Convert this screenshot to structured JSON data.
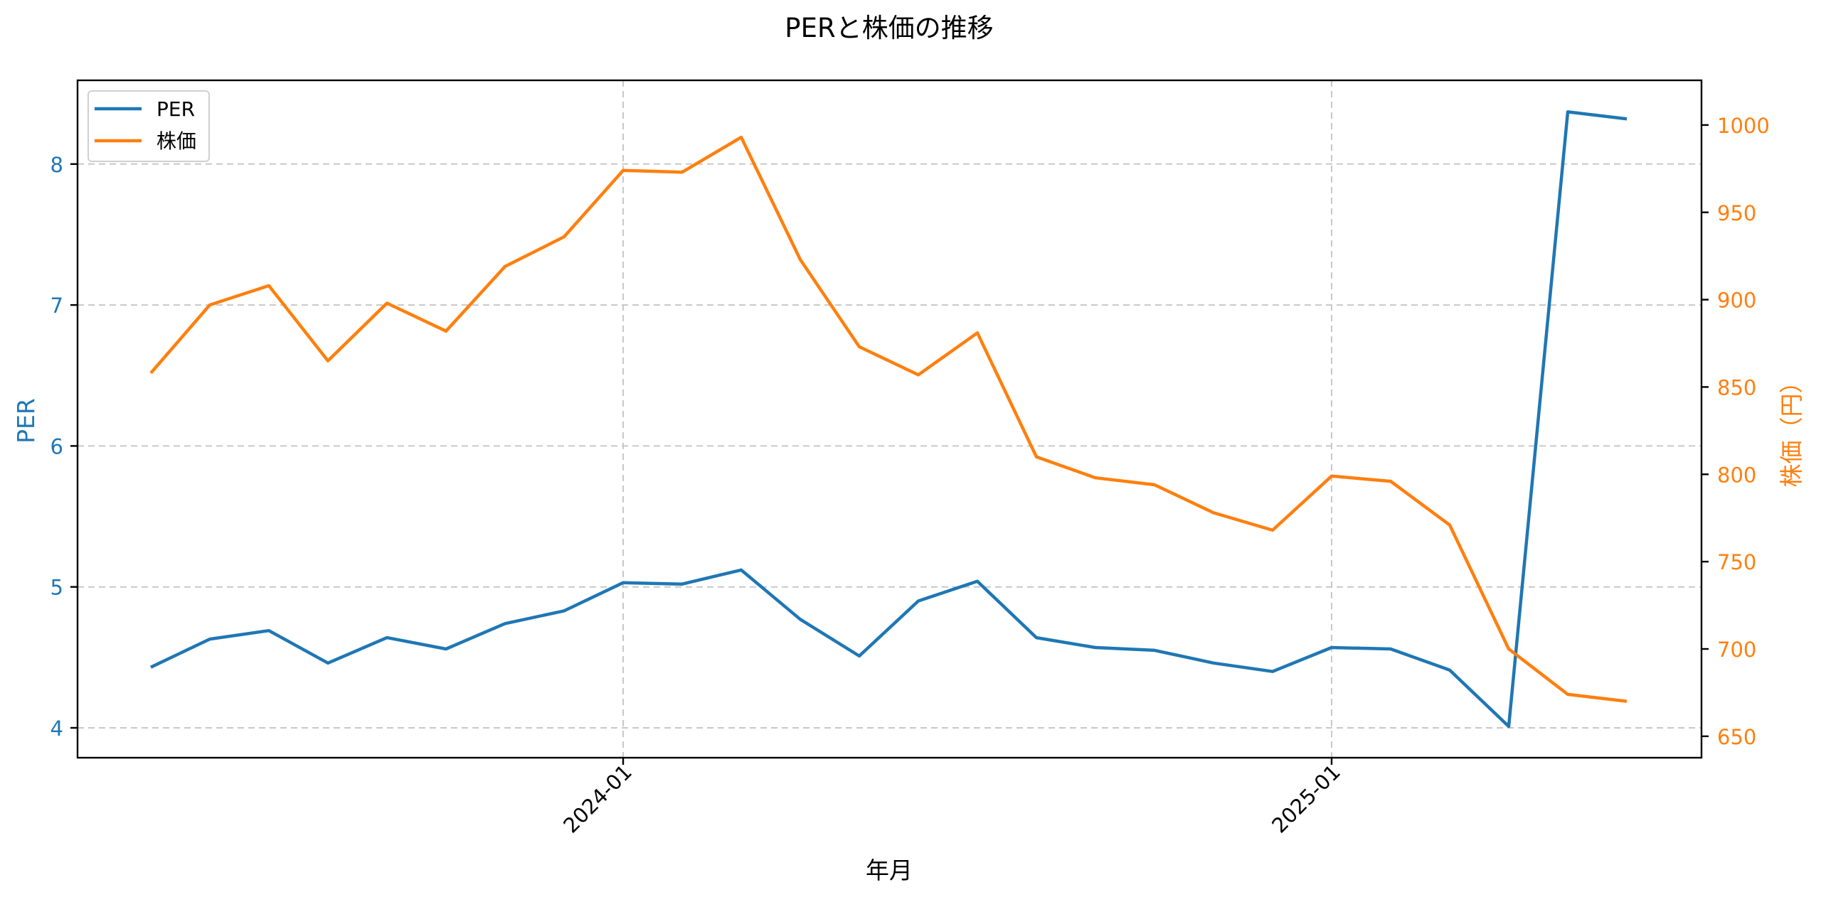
{
  "chart_data": {
    "type": "line",
    "title": "PERと株価の推移",
    "xlabel": "年月",
    "ylabel": "PER",
    "ylabel_right": "株価（円）",
    "x": [
      "2023-05",
      "2023-06",
      "2023-07",
      "2023-08",
      "2023-09",
      "2023-10",
      "2023-11",
      "2023-12",
      "2024-01",
      "2024-02",
      "2024-03",
      "2024-04",
      "2024-05",
      "2024-06",
      "2024-07",
      "2024-08",
      "2024-09",
      "2024-10",
      "2024-11",
      "2024-12",
      "2025-01",
      "2025-02",
      "2025-03",
      "2025-04",
      "2025-05",
      "2025-06"
    ],
    "x_ticks": [
      "2024-01",
      "2025-01"
    ],
    "x_tick_rotation": 45,
    "series": [
      {
        "name": "PER",
        "axis": "left",
        "color": "#1f77b4",
        "values": [
          4.43,
          4.63,
          4.69,
          4.46,
          4.64,
          4.56,
          4.74,
          4.83,
          5.03,
          5.02,
          5.12,
          4.77,
          4.51,
          4.9,
          5.04,
          4.64,
          4.57,
          4.55,
          4.46,
          4.4,
          4.57,
          4.56,
          4.41,
          4.01,
          8.37,
          8.32
        ]
      },
      {
        "name": "株価",
        "axis": "right",
        "color": "#ff7f0e",
        "values": [
          858,
          897,
          908,
          865,
          898,
          882,
          919,
          936,
          974,
          973,
          993,
          923,
          873,
          857,
          881,
          810,
          798,
          794,
          778,
          768,
          799,
          796,
          771,
          700,
          674,
          670
        ]
      }
    ],
    "ylim": [
      3.79,
      8.6
    ],
    "ylim_right": [
      638,
      1024
    ],
    "y_ticks_left": [
      4,
      5,
      6,
      7,
      8
    ],
    "y_ticks_right": [
      650,
      700,
      750,
      800,
      850,
      900,
      950,
      1000
    ],
    "grid": true,
    "grid_style": "dashed",
    "legend_position": "upper left"
  }
}
